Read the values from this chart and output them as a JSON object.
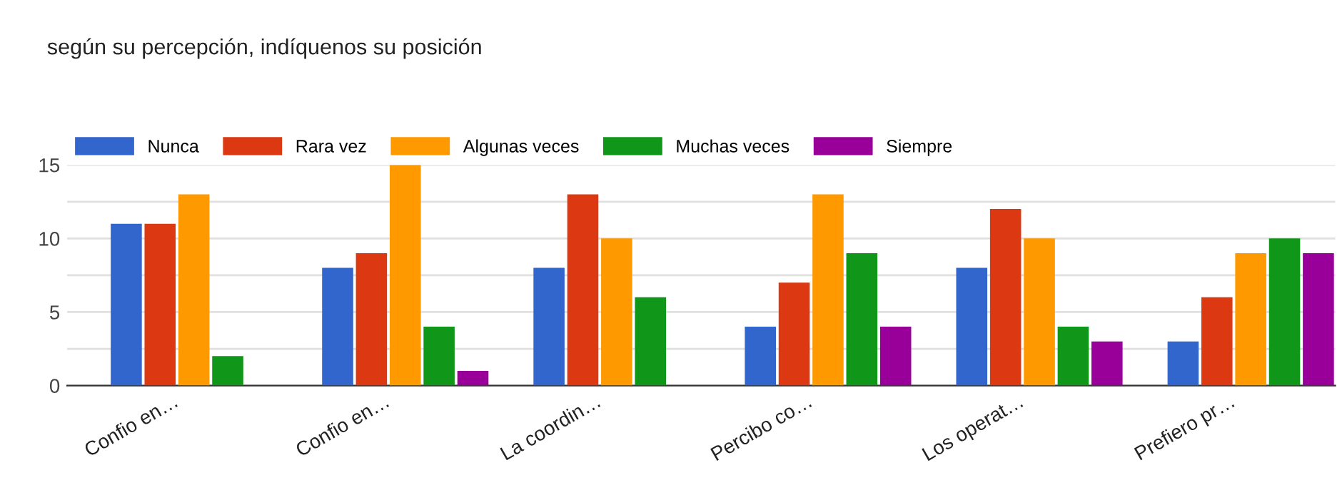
{
  "chart_data": {
    "type": "bar",
    "title": "según su percepción, indíquenos su posición",
    "categories": [
      "Confio en…",
      "Confio en…",
      "La coordin…",
      "Percibo co…",
      "Los operat…",
      "Prefiero pr…"
    ],
    "series": [
      {
        "name": "Nunca",
        "color": "#3366cc",
        "values": [
          11,
          8,
          8,
          4,
          8,
          3
        ]
      },
      {
        "name": "Rara vez",
        "color": "#dc3912",
        "values": [
          11,
          9,
          13,
          7,
          12,
          6
        ]
      },
      {
        "name": "Algunas veces",
        "color": "#ff9900",
        "values": [
          13,
          15,
          10,
          13,
          10,
          9
        ]
      },
      {
        "name": "Muchas veces",
        "color": "#109618",
        "values": [
          2,
          4,
          6,
          9,
          4,
          10
        ]
      },
      {
        "name": "Siempre",
        "color": "#990099",
        "values": [
          0,
          1,
          0,
          4,
          3,
          9
        ]
      }
    ],
    "ylim": [
      0,
      15
    ],
    "yticks": [
      0,
      {
        "value": 2.5,
        "label": null
      },
      5,
      {
        "value": 7.5,
        "label": null
      },
      10,
      {
        "value": 12.5,
        "label": null
      },
      15
    ],
    "grid": "y",
    "legend": "top left"
  }
}
